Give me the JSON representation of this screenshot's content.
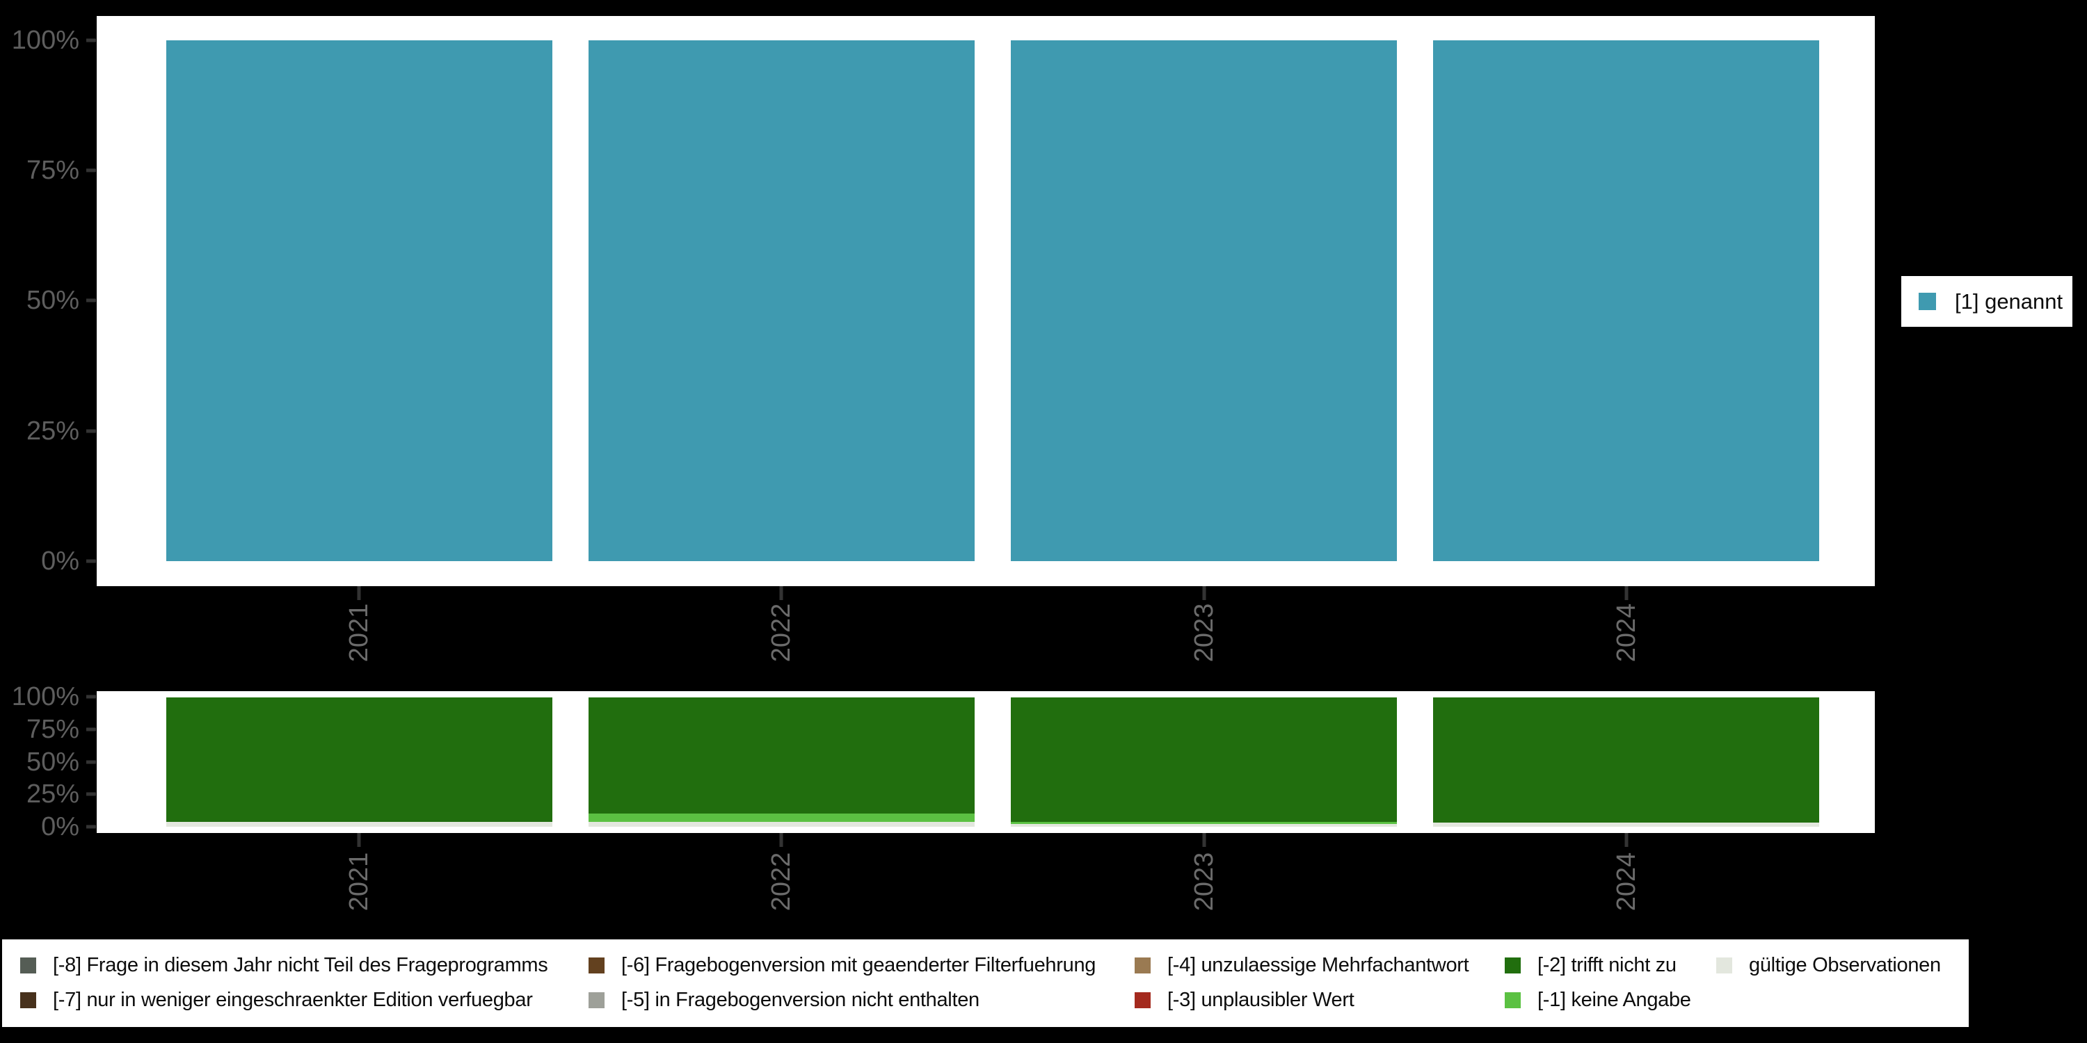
{
  "y_axis": {
    "labels": [
      "100%",
      "75%",
      "50%",
      "25%",
      "0%"
    ]
  },
  "chart_data": [
    {
      "type": "bar",
      "stacked": true,
      "title": "",
      "categories": [
        "2021",
        "2022",
        "2023",
        "2024"
      ],
      "series": [
        {
          "name": "[1] genannt",
          "color": "#3F9AB0",
          "values": [
            100,
            100,
            100,
            100
          ]
        }
      ],
      "xlabel": "",
      "ylabel": "",
      "yticks": [
        "0%",
        "25%",
        "50%",
        "75%",
        "100%"
      ],
      "ylim": [
        0,
        100
      ],
      "grid": false,
      "legend_position": "right"
    },
    {
      "type": "bar",
      "stacked": true,
      "title": "",
      "categories": [
        "2021",
        "2022",
        "2023",
        "2024"
      ],
      "series": [
        {
          "name": "[-2] trifft nicht zu",
          "color": "#216E0E",
          "values": [
            96,
            90,
            96,
            97
          ]
        },
        {
          "name": "[-1] keine Angabe",
          "color": "#5BC142",
          "values": [
            0,
            6.5,
            2,
            0
          ]
        },
        {
          "name": "gültige Observationen",
          "color": "#E3E7DE",
          "values": [
            4,
            3.5,
            2,
            3
          ]
        }
      ],
      "xlabel": "",
      "ylabel": "",
      "yticks": [
        "0%",
        "25%",
        "50%",
        "75%",
        "100%"
      ],
      "ylim": [
        0,
        100
      ],
      "grid": false,
      "legend_position": "bottom"
    }
  ],
  "right_legend": {
    "items": [
      {
        "label": "[1] genannt",
        "color": "#3F9AB0"
      }
    ]
  },
  "bottom_legend": {
    "items": [
      {
        "label": "[-8] Frage in diesem Jahr nicht Teil des Frageprogramms",
        "color": "#555D55"
      },
      {
        "label": "[-6] Fragebogenversion mit geaenderter Filterfuehrung",
        "color": "#63411F"
      },
      {
        "label": "[-4] unzulaessige Mehrfachantwort",
        "color": "#9A7A52"
      },
      {
        "label": "[-2] trifft nicht zu",
        "color": "#216E0E"
      },
      {
        "label": "gültige Observationen",
        "color": "#E3E7DE"
      },
      {
        "label": "[-7] nur in weniger eingeschraenkter Edition verfuegbar",
        "color": "#47311C"
      },
      {
        "label": "[-5] in Fragebogenversion nicht enthalten",
        "color": "#9EA099"
      },
      {
        "label": "[-3] unplausibler Wert",
        "color": "#A42A1E"
      },
      {
        "label": "[-1] keine Angabe",
        "color": "#5BC142"
      }
    ]
  }
}
